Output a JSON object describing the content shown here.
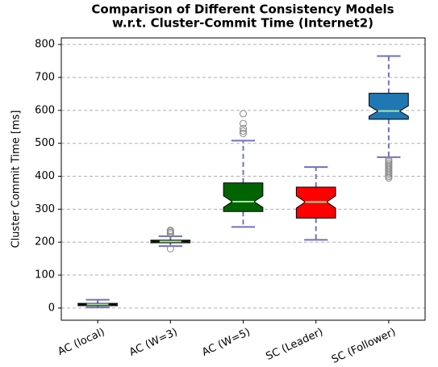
{
  "chart_data": {
    "type": "box",
    "title": [
      "Comparison of Different Consistency Models",
      "w.r.t. Cluster-Commit Time (Internet2)"
    ],
    "ylabel": "Cluster Commit Time [ms]",
    "categories": [
      "AC (local)",
      "AC (W=3)",
      "AC (W=5)",
      "SC (Leader)",
      "SC (Follower)"
    ],
    "boxes": [
      {
        "whislo": 2,
        "q1": 7,
        "median": 11,
        "q3": 14,
        "whishi": 25,
        "fliers": [],
        "color": "#1e5e1e"
      },
      {
        "whislo": 188,
        "q1": 198,
        "median": 202,
        "q3": 206,
        "whishi": 218,
        "fliers": [
          180,
          225,
          229,
          233,
          236
        ],
        "color": "#1e5e1e"
      },
      {
        "whislo": 246,
        "q1": 293,
        "median": 323,
        "q3": 380,
        "whishi": 508,
        "fliers": [
          530,
          537,
          545,
          560,
          590
        ],
        "color": "#006400"
      },
      {
        "whislo": 207,
        "q1": 273,
        "median": 322,
        "q3": 367,
        "whishi": 428,
        "fliers": [],
        "color": "#ff0000"
      },
      {
        "whislo": 458,
        "q1": 573,
        "median": 598,
        "q3": 652,
        "whishi": 765,
        "fliers": [
          395,
          400,
          405,
          410,
          415,
          420,
          425,
          430,
          435,
          440,
          445,
          450
        ],
        "color": "#1f77b4"
      }
    ],
    "median_color": "#a8e6a0",
    "whisker_color": "#7070c0",
    "flier_color": "#888888",
    "ylim": [
      -37,
      820
    ],
    "yticks": [
      0,
      100,
      200,
      300,
      400,
      500,
      600,
      700,
      800
    ],
    "grid": true
  }
}
